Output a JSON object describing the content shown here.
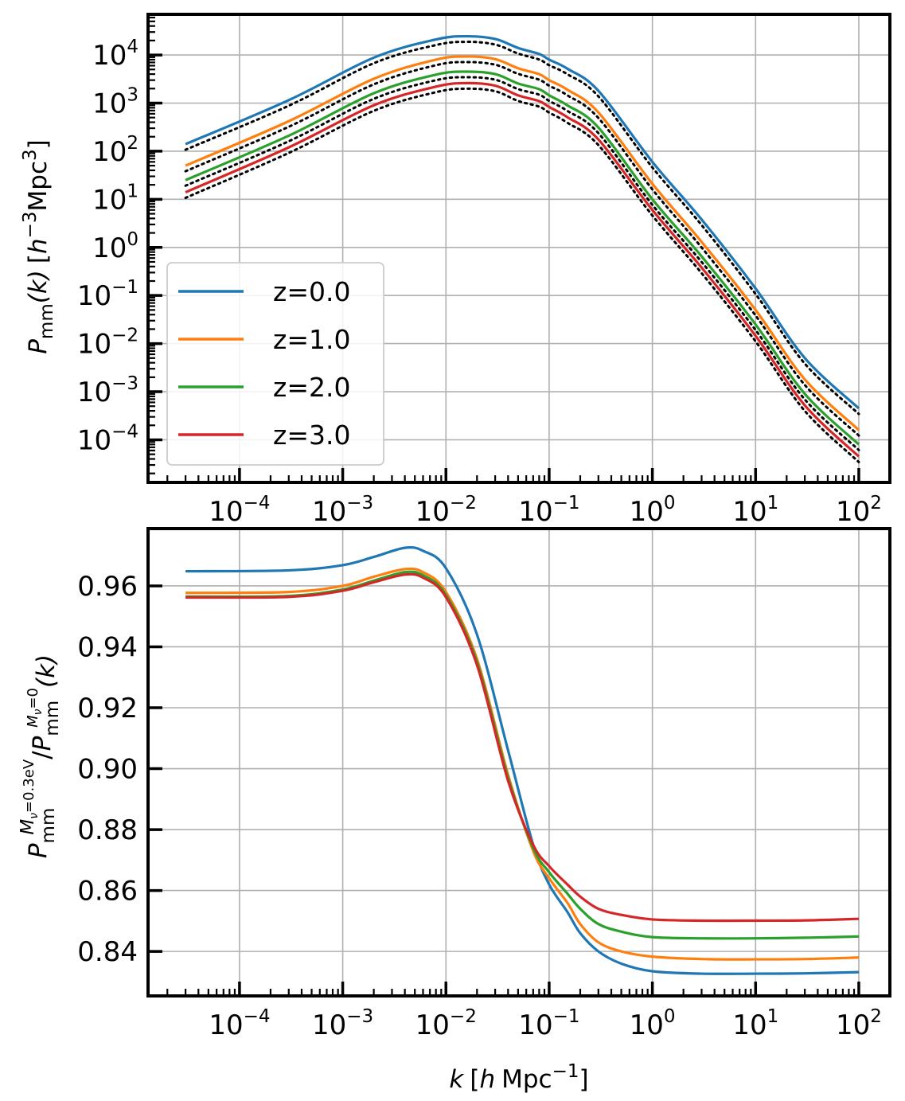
{
  "chart_data": [
    {
      "type": "line",
      "id": "top",
      "xscale": "log",
      "yscale": "log",
      "xlim": [
        1.3e-05,
        200
      ],
      "ylim": [
        1.3e-05,
        70000
      ],
      "ylabel": {
        "base": "P",
        "sub": "mm",
        "arg": "(k)",
        "unit_open": "[",
        "unit_h": "h",
        "unit_h_sup": "−3",
        "unit_mpc": "Mpc",
        "unit_mpc_sup": "3",
        "unit_close": "]"
      },
      "xticks": [
        {
          "base": "10",
          "exp": "−4",
          "v": -4
        },
        {
          "base": "10",
          "exp": "−3",
          "v": -3
        },
        {
          "base": "10",
          "exp": "−2",
          "v": -2
        },
        {
          "base": "10",
          "exp": "−1",
          "v": -1
        },
        {
          "base": "10",
          "exp": "0",
          "v": 0
        },
        {
          "base": "10",
          "exp": "1",
          "v": 1
        },
        {
          "base": "10",
          "exp": "2",
          "v": 2
        }
      ],
      "yticks": [
        {
          "base": "10",
          "exp": "4",
          "v": 4
        },
        {
          "base": "10",
          "exp": "3",
          "v": 3
        },
        {
          "base": "10",
          "exp": "2",
          "v": 2
        },
        {
          "base": "10",
          "exp": "1",
          "v": 1
        },
        {
          "base": "10",
          "exp": "0",
          "v": 0
        },
        {
          "base": "10",
          "exp": "−1",
          "v": -1
        },
        {
          "base": "10",
          "exp": "−2",
          "v": -2
        },
        {
          "base": "10",
          "exp": "−3",
          "v": -3
        },
        {
          "base": "10",
          "exp": "−4",
          "v": -4
        }
      ],
      "grid": true,
      "legend_position": "lower-left",
      "reference_line_style": "dotted black",
      "series": [
        {
          "name": "z=0.0",
          "color": "#1f77b4",
          "x": [
            3e-05,
            0.0003,
            0.002,
            0.008,
            0.016,
            0.03,
            0.05,
            0.08,
            0.1,
            0.15,
            0.3,
            1,
            3,
            10,
            30,
            100
          ],
          "y": [
            140,
            1150,
            8800,
            21000,
            24500,
            21500,
            14000,
            10500,
            8000,
            5200,
            1800,
            60,
            3.8,
            0.14,
            0.005,
            0.00045
          ]
        },
        {
          "name": "z=1.0",
          "color": "#ff7f0e",
          "x": [
            3e-05,
            0.0003,
            0.002,
            0.008,
            0.016,
            0.03,
            0.05,
            0.08,
            0.1,
            0.15,
            0.3,
            1,
            3,
            10,
            30,
            100
          ],
          "y": [
            50,
            420,
            3200,
            8000,
            9300,
            8200,
            5300,
            4000,
            3000,
            1900,
            640,
            21,
            1.3,
            0.05,
            0.0018,
            0.00016
          ]
        },
        {
          "name": "z=2.0",
          "color": "#2ca02c",
          "x": [
            3e-05,
            0.0003,
            0.002,
            0.008,
            0.016,
            0.03,
            0.05,
            0.08,
            0.1,
            0.15,
            0.3,
            1,
            3,
            10,
            30,
            100
          ],
          "y": [
            25,
            210,
            1600,
            3900,
            4500,
            4000,
            2550,
            1950,
            1450,
            900,
            310,
            10,
            0.65,
            0.025,
            0.0009,
            8e-05
          ]
        },
        {
          "name": "z=3.0",
          "color": "#d62728",
          "x": [
            3e-05,
            0.0003,
            0.002,
            0.008,
            0.016,
            0.03,
            0.05,
            0.08,
            0.1,
            0.15,
            0.3,
            1,
            3,
            10,
            30,
            100
          ],
          "y": [
            14,
            120,
            900,
            2200,
            2600,
            2300,
            1450,
            1100,
            830,
            510,
            175,
            6,
            0.38,
            0.0145,
            0.00052,
            4.5e-05
          ]
        }
      ]
    },
    {
      "type": "line",
      "id": "bottom",
      "xscale": "log",
      "yscale": "linear",
      "xlim": [
        1.3e-05,
        200
      ],
      "ylim": [
        0.8254,
        0.9788
      ],
      "xlabel": {
        "k": "k",
        "open": "[",
        "h": "h",
        "mpc": "Mpc",
        "sup": "−1",
        "close": "]"
      },
      "ylabel": {
        "top": "P",
        "top_sub": "mm",
        "top_sup": "M",
        "top_sup_sub": "ν",
        "top_sup_rest": "=0.3eV",
        "slash": "/",
        "bot": "P",
        "bot_sub": "mm",
        "bot_sup": "M",
        "bot_sup_sub": "ν",
        "bot_sup_rest": "=0",
        "arg": "(k)"
      },
      "xticks": [
        {
          "base": "10",
          "exp": "−4",
          "v": -4
        },
        {
          "base": "10",
          "exp": "−3",
          "v": -3
        },
        {
          "base": "10",
          "exp": "−2",
          "v": -2
        },
        {
          "base": "10",
          "exp": "−1",
          "v": -1
        },
        {
          "base": "10",
          "exp": "0",
          "v": 0
        },
        {
          "base": "10",
          "exp": "1",
          "v": 1
        },
        {
          "base": "10",
          "exp": "2",
          "v": 2
        }
      ],
      "yticks": [
        {
          "label": "0.96",
          "v": 0.96
        },
        {
          "label": "0.94",
          "v": 0.94
        },
        {
          "label": "0.92",
          "v": 0.92
        },
        {
          "label": "0.90",
          "v": 0.9
        },
        {
          "label": "0.88",
          "v": 0.88
        },
        {
          "label": "0.86",
          "v": 0.86
        },
        {
          "label": "0.84",
          "v": 0.84
        }
      ],
      "grid": true,
      "series": [
        {
          "name": "z=0.0",
          "color": "#1f77b4",
          "x": [
            3e-05,
            0.0003,
            0.001,
            0.002,
            0.004,
            0.006,
            0.01,
            0.02,
            0.04,
            0.07,
            0.1,
            0.15,
            0.2,
            0.3,
            0.5,
            1,
            3,
            10,
            30,
            100
          ],
          "y": [
            0.9648,
            0.9651,
            0.9668,
            0.9695,
            0.9725,
            0.9715,
            0.9658,
            0.944,
            0.906,
            0.875,
            0.862,
            0.853,
            0.846,
            0.84,
            0.836,
            0.8335,
            0.8327,
            0.8327,
            0.8328,
            0.8332
          ]
        },
        {
          "name": "z=1.0",
          "color": "#ff7f0e",
          "x": [
            3e-05,
            0.0003,
            0.001,
            0.002,
            0.004,
            0.006,
            0.01,
            0.02,
            0.04,
            0.07,
            0.1,
            0.15,
            0.2,
            0.3,
            0.5,
            1,
            3,
            10,
            30,
            100
          ],
          "y": [
            0.9577,
            0.958,
            0.96,
            0.963,
            0.9655,
            0.9645,
            0.958,
            0.936,
            0.898,
            0.873,
            0.864,
            0.856,
            0.849,
            0.843,
            0.84,
            0.8383,
            0.8375,
            0.8374,
            0.8375,
            0.838
          ]
        },
        {
          "name": "z=2.0",
          "color": "#2ca02c",
          "x": [
            3e-05,
            0.0003,
            0.001,
            0.002,
            0.004,
            0.006,
            0.01,
            0.02,
            0.04,
            0.07,
            0.1,
            0.15,
            0.2,
            0.3,
            0.5,
            1,
            3,
            10,
            30,
            100
          ],
          "y": [
            0.9565,
            0.9567,
            0.9588,
            0.9617,
            0.9645,
            0.9635,
            0.957,
            0.935,
            0.897,
            0.874,
            0.866,
            0.859,
            0.854,
            0.849,
            0.8465,
            0.8447,
            0.8443,
            0.8443,
            0.8445,
            0.8449
          ]
        },
        {
          "name": "z=3.0",
          "color": "#d62728",
          "x": [
            3e-05,
            0.0003,
            0.001,
            0.002,
            0.004,
            0.006,
            0.01,
            0.02,
            0.04,
            0.07,
            0.1,
            0.15,
            0.2,
            0.3,
            0.5,
            1,
            3,
            10,
            30,
            100
          ],
          "y": [
            0.9562,
            0.9564,
            0.9584,
            0.9612,
            0.9637,
            0.9627,
            0.9563,
            0.934,
            0.896,
            0.875,
            0.868,
            0.862,
            0.858,
            0.854,
            0.852,
            0.8505,
            0.8501,
            0.8501,
            0.8502,
            0.8507
          ]
        }
      ]
    }
  ]
}
